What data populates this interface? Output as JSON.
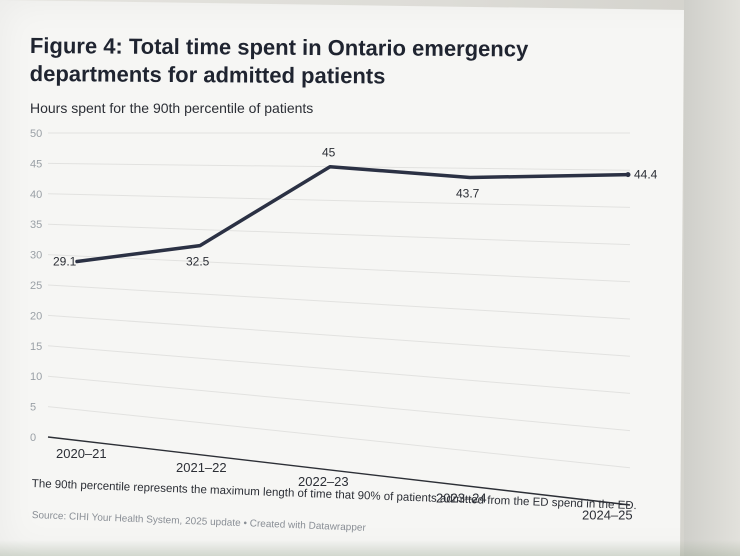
{
  "title": "Figure 4: Total time spent in Ontario emergency departments for admitted patients",
  "subtitle": "Hours spent for the 90th percentile of patients",
  "footnote": "The 90th percentile represents the maximum length of time that 90% of patients admitted from the ED spend in the ED.",
  "source": "Source: CIHI Your Health System, 2025 update • Created with Datawrapper",
  "chart_data": {
    "type": "line",
    "categories": [
      "2020–21",
      "2021–22",
      "2022–23",
      "2023–24",
      "2024–25"
    ],
    "series": [
      {
        "values": [
          29.1,
          32.5,
          45,
          43.7,
          44.4
        ],
        "color": "#2b3144"
      }
    ],
    "data_labels": [
      "29.1",
      "32.5",
      "45",
      "43.7",
      "44.4"
    ],
    "ylim": [
      0,
      50
    ],
    "yticks": [
      "50",
      "45",
      "40",
      "35",
      "30",
      "25",
      "20",
      "15",
      "10",
      "5",
      "0"
    ],
    "ytick_values": [
      50,
      45,
      40,
      35,
      30,
      25,
      20,
      15,
      10,
      5,
      0
    ],
    "grid": true,
    "title": "Figure 4: Total time spent in Ontario emergency departments for admitted patients",
    "ylabel": "Hours spent for the 90th percentile of patients",
    "xlabel": ""
  }
}
